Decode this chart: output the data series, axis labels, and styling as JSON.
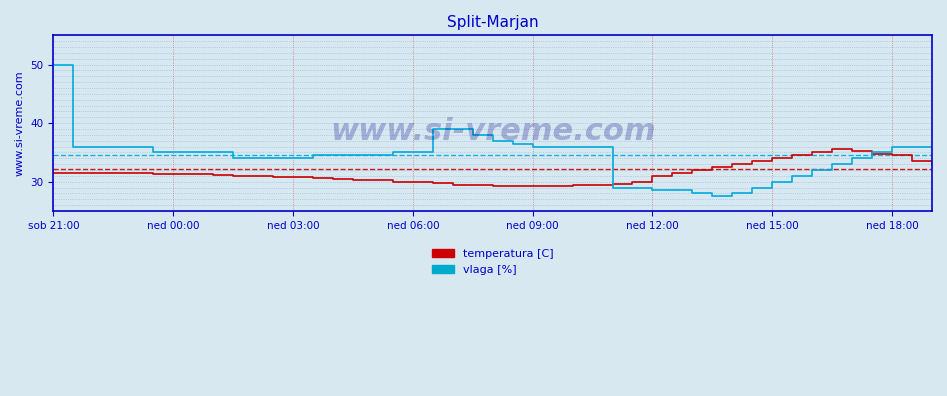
{
  "title": "Split-Marjan",
  "title_color": "#0000cc",
  "title_fontsize": 11,
  "bg_color": "#d8e8f0",
  "plot_bg_color": "#d8e8f0",
  "ylabel_text": "www.si-vreme.com",
  "ylabel_color": "#0000cc",
  "ylabel_fontsize": 8,
  "xlabel_color": "#0000cc",
  "xlabel_fontsize": 8,
  "tick_color": "#0000cc",
  "tick_fontsize": 7.5,
  "legend_temp_color": "#cc0000",
  "legend_vlaga_color": "#00aacc",
  "legend_temp_label": "temperatura [C]",
  "legend_vlaga_label": "vlaga [%]",
  "xticklabels": [
    "sob 21:00",
    "ned 00:00",
    "ned 03:00",
    "ned 06:00",
    "ned 09:00",
    "ned 12:00",
    "ned 15:00",
    "ned 18:00"
  ],
  "xtick_positions": [
    0,
    180,
    360,
    540,
    720,
    900,
    1080,
    1260
  ],
  "ylim": [
    25,
    55
  ],
  "xlim": [
    0,
    1320
  ],
  "yticks": [
    30,
    40,
    50
  ],
  "grid_color_v": "#cc4444",
  "grid_color_h": "#4488cc",
  "avg_temp": 32.2,
  "avg_vlaga": 34.5,
  "temp_color": "#cc0000",
  "vlaga_color": "#00aadd",
  "axis_color": "#0000cc",
  "temp_data_x": [
    0,
    30,
    60,
    90,
    120,
    150,
    180,
    210,
    240,
    270,
    300,
    330,
    360,
    390,
    420,
    450,
    480,
    510,
    540,
    570,
    600,
    630,
    660,
    690,
    720,
    750,
    780,
    810,
    840,
    870,
    900,
    930,
    960,
    990,
    1020,
    1050,
    1080,
    1110,
    1140,
    1170,
    1200,
    1230,
    1260,
    1290,
    1320
  ],
  "temp_data_y": [
    31.5,
    31.5,
    31.5,
    31.5,
    31.5,
    31.3,
    31.3,
    31.3,
    31.1,
    31.0,
    31.0,
    30.8,
    30.8,
    30.6,
    30.5,
    30.3,
    30.3,
    30.0,
    30.0,
    29.8,
    29.5,
    29.4,
    29.3,
    29.3,
    29.3,
    29.3,
    29.4,
    29.5,
    29.6,
    30.0,
    31.0,
    31.5,
    32.0,
    32.5,
    33.0,
    33.5,
    34.0,
    34.5,
    35.0,
    35.5,
    35.2,
    34.8,
    34.5,
    33.5,
    32.8
  ],
  "vlaga_data_x": [
    0,
    5,
    10,
    30,
    60,
    90,
    120,
    150,
    180,
    210,
    240,
    270,
    300,
    330,
    360,
    390,
    420,
    450,
    480,
    510,
    540,
    570,
    600,
    630,
    660,
    690,
    720,
    750,
    780,
    810,
    840,
    870,
    900,
    930,
    960,
    990,
    1020,
    1050,
    1080,
    1110,
    1140,
    1170,
    1200,
    1230,
    1260,
    1290,
    1320
  ],
  "vlaga_data_y": [
    50,
    50,
    50,
    36,
    36,
    36,
    36,
    35,
    35,
    35,
    35,
    34,
    34,
    34,
    34,
    34.5,
    34.5,
    34.5,
    34.5,
    35,
    35,
    39,
    39,
    38,
    37,
    36.5,
    36,
    36,
    36,
    36,
    29,
    29,
    28.5,
    28.5,
    28,
    27.5,
    28,
    29,
    30,
    31,
    32,
    33,
    34,
    35,
    36,
    36,
    36
  ]
}
